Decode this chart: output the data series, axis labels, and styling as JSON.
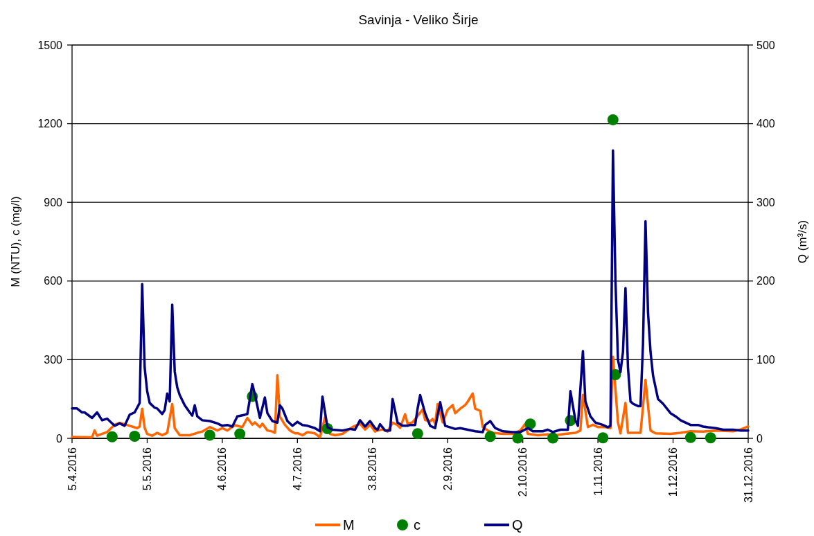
{
  "chart_data": {
    "type": "line",
    "title": "Savinja - Veliko Širje",
    "ylabel": "M (NTU), c (mg/l)",
    "y2label": "Q (m³/s)",
    "xlim": [
      "2016-04-05",
      "2016-12-31"
    ],
    "xticks": [
      {
        "value": "2016-04-05",
        "label": "5.4.2016"
      },
      {
        "value": "2016-05-05",
        "label": "5.5.2016"
      },
      {
        "value": "2016-06-04",
        "label": "4.6.2016"
      },
      {
        "value": "2016-07-04",
        "label": "4.7.2016"
      },
      {
        "value": "2016-08-03",
        "label": "3.8.2016"
      },
      {
        "value": "2016-09-02",
        "label": "2.9.2016"
      },
      {
        "value": "2016-10-02",
        "label": "2.10.2016"
      },
      {
        "value": "2016-11-01",
        "label": "1.11.2016"
      },
      {
        "value": "2016-12-01",
        "label": "1.12.2016"
      },
      {
        "value": "2016-12-31",
        "label": "31.12.2016"
      }
    ],
    "ylim": [
      0,
      1500
    ],
    "yticks": [
      0,
      300,
      600,
      900,
      1200,
      1500
    ],
    "y2lim": [
      0,
      500
    ],
    "y2ticks": [
      0,
      100,
      200,
      300,
      400,
      500
    ],
    "grid": "y",
    "legend": "bottom",
    "series": [
      {
        "name": "M",
        "color": "#ff6600",
        "x": [
          "2016-04-05",
          "2016-04-13",
          "2016-04-14",
          "2016-04-15",
          "2016-04-19",
          "2016-04-22",
          "2016-04-24",
          "2016-04-26",
          "2016-04-28",
          "2016-05-01",
          "2016-05-02",
          "2016-05-03",
          "2016-05-04",
          "2016-05-05",
          "2016-05-07",
          "2016-05-09",
          "2016-05-11",
          "2016-05-13",
          "2016-05-15",
          "2016-05-16",
          "2016-05-18",
          "2016-05-22",
          "2016-05-25",
          "2016-05-27",
          "2016-05-30",
          "2016-06-02",
          "2016-06-04",
          "2016-06-06",
          "2016-06-09",
          "2016-06-12",
          "2016-06-14",
          "2016-06-16",
          "2016-06-17",
          "2016-06-19",
          "2016-06-20",
          "2016-06-22",
          "2016-06-24",
          "2016-06-25",
          "2016-06-26",
          "2016-06-27",
          "2016-06-29",
          "2016-07-01",
          "2016-07-03",
          "2016-07-04",
          "2016-07-06",
          "2016-07-08",
          "2016-07-11",
          "2016-07-13",
          "2016-07-15",
          "2016-07-17",
          "2016-07-19",
          "2016-07-22",
          "2016-07-24",
          "2016-07-26",
          "2016-07-29",
          "2016-07-31",
          "2016-08-02",
          "2016-08-04",
          "2016-08-05",
          "2016-08-07",
          "2016-08-09",
          "2016-08-11",
          "2016-08-13",
          "2016-08-14",
          "2016-08-16",
          "2016-08-17",
          "2016-08-19",
          "2016-08-23",
          "2016-08-24",
          "2016-08-26",
          "2016-08-27",
          "2016-08-28",
          "2016-08-29",
          "2016-08-31",
          "2016-09-02",
          "2016-09-04",
          "2016-09-05",
          "2016-09-07",
          "2016-09-09",
          "2016-09-10",
          "2016-09-12",
          "2016-09-13",
          "2016-09-15",
          "2016-09-16",
          "2016-09-18",
          "2016-09-20",
          "2016-09-24",
          "2016-09-28",
          "2016-10-01",
          "2016-10-03",
          "2016-10-04",
          "2016-10-08",
          "2016-10-12",
          "2016-10-15",
          "2016-10-19",
          "2016-10-23",
          "2016-10-25",
          "2016-10-26",
          "2016-10-28",
          "2016-10-30",
          "2016-11-01",
          "2016-11-04",
          "2016-11-06",
          "2016-11-07",
          "2016-11-09",
          "2016-11-10",
          "2016-11-12",
          "2016-11-13",
          "2016-11-18",
          "2016-11-20",
          "2016-11-22",
          "2016-11-24",
          "2016-11-30",
          "2016-12-04",
          "2016-12-08",
          "2016-12-13",
          "2016-12-19",
          "2016-12-25",
          "2016-12-28",
          "2016-12-31"
        ],
        "values": [
          5,
          4,
          30,
          10,
          24,
          52,
          59,
          54,
          48,
          39,
          45,
          113,
          40,
          17,
          10,
          21,
          12,
          21,
          131,
          39,
          12,
          12,
          21,
          26,
          43,
          30,
          39,
          30,
          50,
          43,
          78,
          52,
          61,
          43,
          56,
          30,
          26,
          21,
          241,
          83,
          52,
          30,
          19,
          20,
          12,
          24,
          19,
          4,
          80,
          17,
          12,
          17,
          30,
          43,
          56,
          34,
          52,
          26,
          30,
          34,
          26,
          60,
          50,
          40,
          92,
          56,
          61,
          110,
          70,
          65,
          74,
          56,
          131,
          61,
          109,
          127,
          96,
          113,
          127,
          140,
          171,
          113,
          105,
          43,
          30,
          21,
          17,
          17,
          30,
          55,
          17,
          12,
          15,
          12,
          17,
          21,
          30,
          166,
          43,
          52,
          43,
          43,
          39,
          311,
          61,
          19,
          135,
          21,
          21,
          223,
          30,
          19,
          17,
          21,
          27,
          26,
          30,
          27,
          34,
          45
        ]
      },
      {
        "name": "c",
        "type": "scatter",
        "marker": "circle",
        "color": "#008000",
        "x": [
          "2016-04-21",
          "2016-04-30",
          "2016-05-30",
          "2016-06-11",
          "2016-06-16",
          "2016-07-16",
          "2016-08-21",
          "2016-09-19",
          "2016-09-30",
          "2016-10-05",
          "2016-10-14",
          "2016-10-21",
          "2016-11-03",
          "2016-11-07",
          "2016-11-08",
          "2016-12-08",
          "2016-12-16"
        ],
        "values": [
          6,
          8,
          12,
          17,
          160,
          37,
          18,
          7,
          1,
          55,
          1,
          68,
          2,
          1215,
          243,
          3,
          2
        ]
      },
      {
        "name": "Q",
        "axis": "y2",
        "color": "#000080",
        "x": [
          "2016-04-05",
          "2016-04-07",
          "2016-04-09",
          "2016-04-10",
          "2016-04-13",
          "2016-04-15",
          "2016-04-17",
          "2016-04-19",
          "2016-04-22",
          "2016-04-24",
          "2016-04-26",
          "2016-04-28",
          "2016-04-30",
          "2016-05-02",
          "2016-05-03",
          "2016-05-04",
          "2016-05-05",
          "2016-05-06",
          "2016-05-08",
          "2016-05-09",
          "2016-05-11",
          "2016-05-12",
          "2016-05-13",
          "2016-05-14",
          "2016-05-15",
          "2016-05-16",
          "2016-05-17",
          "2016-05-18",
          "2016-05-20",
          "2016-05-22",
          "2016-05-23",
          "2016-05-24",
          "2016-05-25",
          "2016-05-27",
          "2016-05-30",
          "2016-06-02",
          "2016-06-04",
          "2016-06-06",
          "2016-06-08",
          "2016-06-10",
          "2016-06-13",
          "2016-06-14",
          "2016-06-16",
          "2016-06-17",
          "2016-06-19",
          "2016-06-21",
          "2016-06-22",
          "2016-06-24",
          "2016-06-26",
          "2016-06-27",
          "2016-06-28",
          "2016-06-30",
          "2016-07-02",
          "2016-07-04",
          "2016-07-06",
          "2016-07-08",
          "2016-07-11",
          "2016-07-13",
          "2016-07-14",
          "2016-07-16",
          "2016-07-18",
          "2016-07-22",
          "2016-07-25",
          "2016-07-27",
          "2016-07-29",
          "2016-07-31",
          "2016-08-02",
          "2016-08-04",
          "2016-08-05",
          "2016-08-06",
          "2016-08-08",
          "2016-08-10",
          "2016-08-11",
          "2016-08-13",
          "2016-08-15",
          "2016-08-17",
          "2016-08-18",
          "2016-08-20",
          "2016-08-21",
          "2016-08-22",
          "2016-08-24",
          "2016-08-26",
          "2016-08-28",
          "2016-08-30",
          "2016-09-01",
          "2016-09-03",
          "2016-09-05",
          "2016-09-07",
          "2016-09-10",
          "2016-09-13",
          "2016-09-16",
          "2016-09-17",
          "2016-09-19",
          "2016-09-21",
          "2016-09-24",
          "2016-09-28",
          "2016-10-01",
          "2016-10-04",
          "2016-10-06",
          "2016-10-10",
          "2016-10-12",
          "2016-10-14",
          "2016-10-17",
          "2016-10-20",
          "2016-10-21",
          "2016-10-23",
          "2016-10-24",
          "2016-10-26",
          "2016-10-27",
          "2016-10-29",
          "2016-10-31",
          "2016-11-03",
          "2016-11-05",
          "2016-11-06",
          "2016-11-07",
          "2016-11-08",
          "2016-11-09",
          "2016-11-10",
          "2016-11-11",
          "2016-11-12",
          "2016-11-13",
          "2016-11-14",
          "2016-11-15",
          "2016-11-17",
          "2016-11-18",
          "2016-11-19",
          "2016-11-20",
          "2016-11-21",
          "2016-11-22",
          "2016-11-23",
          "2016-11-25",
          "2016-11-27",
          "2016-11-30",
          "2016-12-02",
          "2016-12-04",
          "2016-12-08",
          "2016-12-11",
          "2016-12-13",
          "2016-12-15",
          "2016-12-18",
          "2016-12-21",
          "2016-12-25",
          "2016-12-28",
          "2016-12-31"
        ],
        "values": [
          38,
          38,
          33,
          33,
          26,
          33,
          23,
          25,
          16,
          19,
          16,
          30,
          33,
          45,
          196,
          90,
          60,
          45,
          39,
          38,
          31,
          36,
          57,
          47,
          170,
          85,
          65,
          55,
          42,
          33,
          29,
          42,
          28,
          23,
          22,
          19,
          16,
          17,
          15,
          28,
          30,
          31,
          69,
          56,
          26,
          52,
          32,
          22,
          20,
          42,
          38,
          22,
          16,
          21,
          17,
          16,
          13,
          9,
          53,
          14,
          11,
          10,
          12,
          11,
          23,
          15,
          22,
          13,
          11,
          18,
          10,
          10,
          50,
          20,
          16,
          16,
          17,
          17,
          38,
          55,
          32,
          16,
          13,
          46,
          16,
          14,
          12,
          13,
          11,
          9,
          8,
          17,
          22,
          13,
          9,
          8,
          8,
          13,
          9,
          9,
          11,
          8,
          11,
          11,
          60,
          23,
          16,
          111,
          47,
          28,
          20,
          17,
          14,
          16,
          366,
          200,
          100,
          84,
          110,
          191,
          90,
          47,
          44,
          41,
          41,
          120,
          276,
          160,
          110,
          80,
          50,
          44,
          32,
          28,
          23,
          17,
          17,
          15,
          14,
          13,
          11,
          11,
          10,
          10
        ]
      }
    ]
  }
}
